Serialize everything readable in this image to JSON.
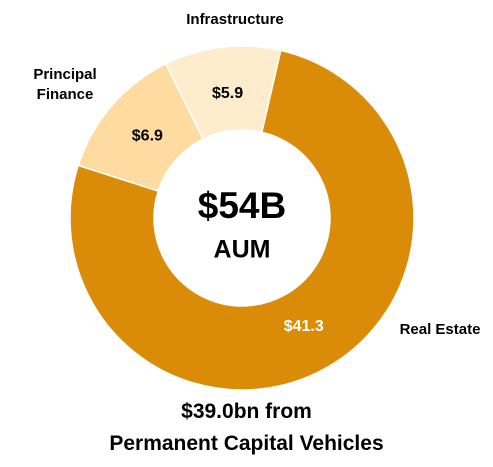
{
  "chart_data": {
    "type": "donut",
    "categories": [
      "Real Estate",
      "Principal Finance",
      "Infrastructure"
    ],
    "values": [
      41.3,
      6.9,
      5.9
    ],
    "value_labels": [
      "$41.3",
      "$6.9",
      "$5.9"
    ],
    "colors": [
      "#da8c08",
      "#fddba1",
      "#feeccd"
    ],
    "value_label_colors": [
      "#ffffff",
      "#000000",
      "#000000"
    ],
    "center_label": "$54B",
    "center_sublabel": "AUM",
    "caption": [
      "$39.0bn from",
      "Permanent Capital Vehicles"
    ]
  }
}
